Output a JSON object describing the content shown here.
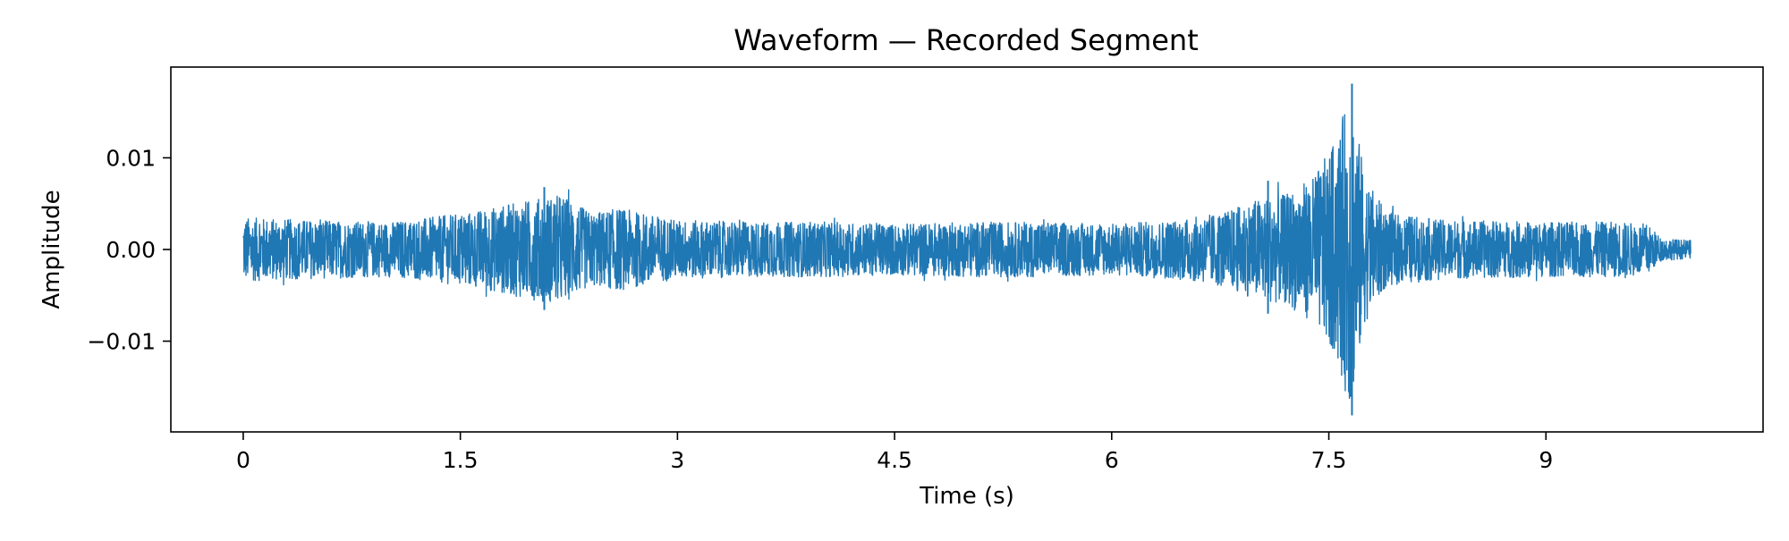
{
  "chart_data": {
    "type": "line",
    "title": "Waveform — Recorded Segment",
    "xlabel": "Time (s)",
    "ylabel": "Amplitude",
    "xlim": [
      -0.5,
      10.5
    ],
    "ylim": [
      -0.0199,
      0.0199
    ],
    "x_ticks": [
      {
        "value": 0,
        "label": "0"
      },
      {
        "value": 1.5,
        "label": "1.5"
      },
      {
        "value": 3,
        "label": "3"
      },
      {
        "value": 4.5,
        "label": "4.5"
      },
      {
        "value": 6,
        "label": "6"
      },
      {
        "value": 7.5,
        "label": "7.5"
      },
      {
        "value": 9,
        "label": "9"
      }
    ],
    "y_ticks": [
      {
        "value": 0.01,
        "label": "0.01"
      },
      {
        "value": 0.0,
        "label": "0.00"
      },
      {
        "value": -0.01,
        "label": "−0.01"
      }
    ],
    "grid": false,
    "legend": "none",
    "series": [
      {
        "color": "#1f77b4",
        "x_start": 0,
        "x_end": 10,
        "envelope": [
          {
            "t": 0.0,
            "a": 0.0035
          },
          {
            "t": 0.5,
            "a": 0.0032
          },
          {
            "t": 1.0,
            "a": 0.003
          },
          {
            "t": 1.3,
            "a": 0.0035
          },
          {
            "t": 1.6,
            "a": 0.0042
          },
          {
            "t": 2.0,
            "a": 0.0055
          },
          {
            "t": 2.2,
            "a": 0.006
          },
          {
            "t": 2.4,
            "a": 0.004
          },
          {
            "t": 2.6,
            "a": 0.0045
          },
          {
            "t": 3.0,
            "a": 0.0032
          },
          {
            "t": 3.5,
            "a": 0.003
          },
          {
            "t": 4.0,
            "a": 0.003
          },
          {
            "t": 4.5,
            "a": 0.0028
          },
          {
            "t": 5.0,
            "a": 0.003
          },
          {
            "t": 5.5,
            "a": 0.003
          },
          {
            "t": 6.0,
            "a": 0.0028
          },
          {
            "t": 6.5,
            "a": 0.0033
          },
          {
            "t": 6.8,
            "a": 0.0042
          },
          {
            "t": 7.0,
            "a": 0.0055
          },
          {
            "t": 7.2,
            "a": 0.006
          },
          {
            "t": 7.4,
            "a": 0.008
          },
          {
            "t": 7.55,
            "a": 0.012
          },
          {
            "t": 7.65,
            "a": 0.0175
          },
          {
            "t": 7.75,
            "a": 0.008
          },
          {
            "t": 7.9,
            "a": 0.004
          },
          {
            "t": 8.3,
            "a": 0.0032
          },
          {
            "t": 9.0,
            "a": 0.003
          },
          {
            "t": 9.5,
            "a": 0.003
          },
          {
            "t": 9.7,
            "a": 0.0028
          },
          {
            "t": 9.8,
            "a": 0.0012
          },
          {
            "t": 10.0,
            "a": 0.001
          }
        ],
        "spikes": [
          {
            "t": 7.66,
            "y": 0.0181
          },
          {
            "t": 7.66,
            "y": -0.0181
          },
          {
            "t": 2.08,
            "y": 0.0068
          },
          {
            "t": 2.08,
            "y": -0.0066
          },
          {
            "t": 7.08,
            "y": 0.0075
          },
          {
            "t": 7.08,
            "y": -0.007
          },
          {
            "t": 7.52,
            "y": 0.01
          },
          {
            "t": 7.52,
            "y": -0.0105
          }
        ]
      }
    ]
  }
}
